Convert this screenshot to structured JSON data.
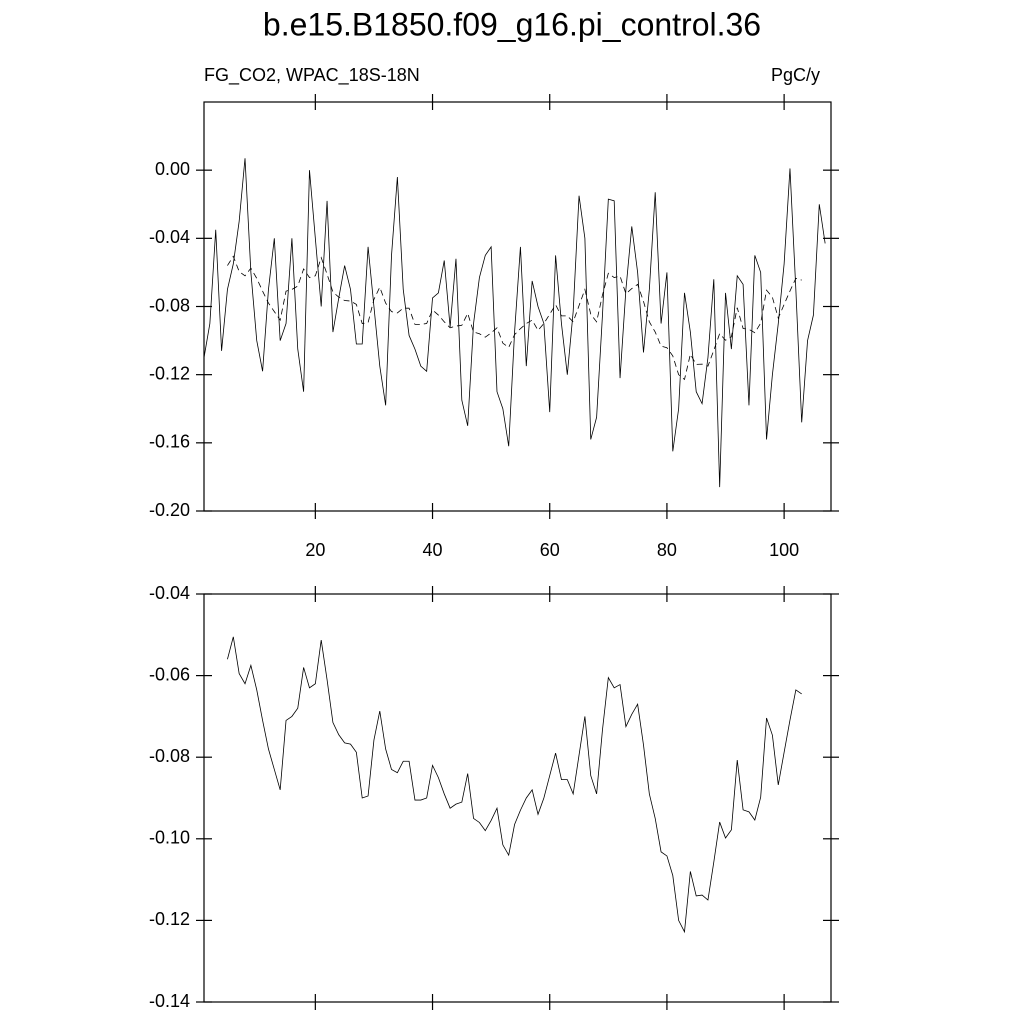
{
  "chart_data": [
    {
      "type": "line",
      "title": "b.e15.B1850.f09_g16.pi_control.36",
      "subtitle_left": "FG_CO2, WPAC_18S-18N",
      "subtitle_right": "PgC/y",
      "xlim": [
        1,
        108
      ],
      "ylim": [
        -0.2,
        0.04
      ],
      "xticks": [
        20,
        40,
        60,
        80,
        100
      ],
      "xtick_labels_shown": true,
      "yticks": [
        {
          "value": 0,
          "label": "0.00"
        },
        {
          "value": -0.04,
          "label": "-0.04"
        },
        {
          "value": -0.08,
          "label": "-0.08"
        },
        {
          "value": -0.12,
          "label": "-0.12"
        },
        {
          "value": -0.16,
          "label": "-0.16"
        },
        {
          "value": -0.2,
          "label": "-0.20"
        }
      ],
      "series": [
        {
          "color": "#000000",
          "dashed": false,
          "x": [
            1,
            2,
            3,
            4,
            5,
            6,
            7,
            8,
            9,
            10,
            11,
            12,
            13,
            14,
            15,
            16,
            17,
            18,
            19,
            20,
            21,
            22,
            23,
            24,
            25,
            26,
            27,
            28,
            29,
            30,
            31,
            32,
            33,
            34,
            35,
            36,
            37,
            38,
            39,
            40,
            41,
            42,
            43,
            44,
            45,
            46,
            47,
            48,
            49,
            50,
            51,
            52,
            53,
            54,
            55,
            56,
            57,
            58,
            59,
            60,
            61,
            62,
            63,
            64,
            65,
            66,
            67,
            68,
            69,
            70,
            71,
            72,
            73,
            74,
            75,
            76,
            77,
            78,
            79,
            80,
            81,
            82,
            83,
            84,
            85,
            86,
            87,
            88,
            89,
            90,
            91,
            92,
            93,
            94,
            95,
            96,
            97,
            98,
            99,
            100,
            101,
            102,
            103,
            104,
            105,
            106,
            107
          ],
          "values": [
            -0.11,
            -0.09,
            -0.035,
            -0.106,
            -0.07,
            -0.055,
            -0.03,
            0.007,
            -0.06,
            -0.1,
            -0.118,
            -0.07,
            -0.04,
            -0.1,
            -0.09,
            -0.04,
            -0.105,
            -0.13,
            0.0,
            -0.04,
            -0.08,
            -0.018,
            -0.095,
            -0.075,
            -0.056,
            -0.07,
            -0.102,
            -0.102,
            -0.045,
            -0.08,
            -0.115,
            -0.138,
            -0.05,
            -0.004,
            -0.07,
            -0.097,
            -0.105,
            -0.115,
            -0.118,
            -0.075,
            -0.072,
            -0.053,
            -0.092,
            -0.052,
            -0.135,
            -0.15,
            -0.09,
            -0.063,
            -0.05,
            -0.045,
            -0.13,
            -0.14,
            -0.162,
            -0.095,
            -0.045,
            -0.115,
            -0.065,
            -0.08,
            -0.09,
            -0.142,
            -0.05,
            -0.09,
            -0.12,
            -0.083,
            -0.015,
            -0.04,
            -0.158,
            -0.145,
            -0.085,
            -0.017,
            -0.018,
            -0.122,
            -0.07,
            -0.033,
            -0.06,
            -0.107,
            -0.07,
            -0.013,
            -0.09,
            -0.06,
            -0.165,
            -0.14,
            -0.072,
            -0.095,
            -0.13,
            -0.137,
            -0.11,
            -0.064,
            -0.186,
            -0.072,
            -0.105,
            -0.062,
            -0.067,
            -0.138,
            -0.05,
            -0.06,
            -0.158,
            -0.12,
            -0.09,
            -0.055,
            0.001,
            -0.07,
            -0.148,
            -0.1,
            -0.085,
            -0.02,
            -0.043
          ]
        },
        {
          "color": "#000000",
          "dashed": true,
          "x": [
            5,
            6,
            7,
            8,
            9,
            10,
            11,
            12,
            13,
            14,
            15,
            16,
            17,
            18,
            19,
            20,
            21,
            22,
            23,
            24,
            25,
            26,
            27,
            28,
            29,
            30,
            31,
            32,
            33,
            34,
            35,
            36,
            37,
            38,
            39,
            40,
            41,
            42,
            43,
            44,
            45,
            46,
            47,
            48,
            49,
            50,
            51,
            52,
            53,
            54,
            55,
            56,
            57,
            58,
            59,
            60,
            61,
            62,
            63,
            64,
            65,
            66,
            67,
            68,
            69,
            70,
            71,
            72,
            73,
            74,
            75,
            76,
            77,
            78,
            79,
            80,
            81,
            82,
            83,
            84,
            85,
            86,
            87,
            88,
            89,
            90,
            91,
            92,
            93,
            94,
            95,
            96,
            97,
            98,
            99,
            100,
            101,
            102,
            103
          ],
          "values": [
            -0.056,
            -0.0505,
            -0.0595,
            -0.062,
            -0.0575,
            -0.0635,
            -0.071,
            -0.078,
            -0.083,
            -0.088,
            -0.071,
            -0.07,
            -0.068,
            -0.058,
            -0.063,
            -0.062,
            -0.0513,
            -0.061,
            -0.0715,
            -0.0745,
            -0.0765,
            -0.0768,
            -0.0788,
            -0.09,
            -0.0895,
            -0.0758,
            -0.0687,
            -0.078,
            -0.083,
            -0.0838,
            -0.081,
            -0.081,
            -0.0905,
            -0.0905,
            -0.09,
            -0.082,
            -0.085,
            -0.089,
            -0.0925,
            -0.0915,
            -0.091,
            -0.084,
            -0.095,
            -0.096,
            -0.098,
            -0.0955,
            -0.0925,
            -0.1015,
            -0.104,
            -0.0965,
            -0.093,
            -0.09,
            -0.088,
            -0.094,
            -0.09,
            -0.0845,
            -0.079,
            -0.0855,
            -0.0855,
            -0.089,
            -0.0795,
            -0.07,
            -0.0845,
            -0.089,
            -0.0733,
            -0.0605,
            -0.063,
            -0.0622,
            -0.0725,
            -0.0695,
            -0.067,
            -0.077,
            -0.089,
            -0.095,
            -0.1032,
            -0.1042,
            -0.109,
            -0.12,
            -0.1228,
            -0.108,
            -0.114,
            -0.1138,
            -0.115,
            -0.1057,
            -0.0959,
            -0.0998,
            -0.0978,
            -0.0807,
            -0.0929,
            -0.0934,
            -0.0954,
            -0.0898,
            -0.0704,
            -0.0746,
            -0.0868,
            -0.0788,
            -0.0709,
            -0.0635,
            -0.0645
          ]
        }
      ]
    },
    {
      "type": "line",
      "xlim": [
        1,
        108
      ],
      "ylim": [
        -0.14,
        -0.04
      ],
      "xticks": [
        20,
        40,
        60,
        80,
        100
      ],
      "xtick_labels_shown": false,
      "yticks": [
        {
          "value": -0.04,
          "label": "-0.04"
        },
        {
          "value": -0.06,
          "label": "-0.06"
        },
        {
          "value": -0.08,
          "label": "-0.08"
        },
        {
          "value": -0.1,
          "label": "-0.10"
        },
        {
          "value": -0.12,
          "label": "-0.12"
        },
        {
          "value": -0.14,
          "label": "-0.14"
        }
      ],
      "series": [
        {
          "color": "#000000",
          "dashed": false,
          "x": [
            5,
            6,
            7,
            8,
            9,
            10,
            11,
            12,
            13,
            14,
            15,
            16,
            17,
            18,
            19,
            20,
            21,
            22,
            23,
            24,
            25,
            26,
            27,
            28,
            29,
            30,
            31,
            32,
            33,
            34,
            35,
            36,
            37,
            38,
            39,
            40,
            41,
            42,
            43,
            44,
            45,
            46,
            47,
            48,
            49,
            50,
            51,
            52,
            53,
            54,
            55,
            56,
            57,
            58,
            59,
            60,
            61,
            62,
            63,
            64,
            65,
            66,
            67,
            68,
            69,
            70,
            71,
            72,
            73,
            74,
            75,
            76,
            77,
            78,
            79,
            80,
            81,
            82,
            83,
            84,
            85,
            86,
            87,
            88,
            89,
            90,
            91,
            92,
            93,
            94,
            95,
            96,
            97,
            98,
            99,
            100,
            101,
            102,
            103
          ],
          "values": [
            -0.056,
            -0.0505,
            -0.0595,
            -0.062,
            -0.0575,
            -0.0635,
            -0.071,
            -0.078,
            -0.083,
            -0.088,
            -0.071,
            -0.07,
            -0.068,
            -0.058,
            -0.063,
            -0.062,
            -0.0513,
            -0.061,
            -0.0715,
            -0.0745,
            -0.0765,
            -0.0768,
            -0.0788,
            -0.09,
            -0.0895,
            -0.0758,
            -0.0687,
            -0.078,
            -0.083,
            -0.0838,
            -0.081,
            -0.081,
            -0.0905,
            -0.0905,
            -0.09,
            -0.082,
            -0.085,
            -0.089,
            -0.0925,
            -0.0915,
            -0.091,
            -0.084,
            -0.095,
            -0.096,
            -0.098,
            -0.0955,
            -0.0925,
            -0.1015,
            -0.104,
            -0.0965,
            -0.093,
            -0.09,
            -0.088,
            -0.094,
            -0.09,
            -0.0845,
            -0.079,
            -0.0855,
            -0.0855,
            -0.089,
            -0.0795,
            -0.07,
            -0.0845,
            -0.089,
            -0.0733,
            -0.0605,
            -0.063,
            -0.0622,
            -0.0725,
            -0.0695,
            -0.067,
            -0.077,
            -0.089,
            -0.095,
            -0.1032,
            -0.1042,
            -0.109,
            -0.12,
            -0.1228,
            -0.108,
            -0.114,
            -0.1138,
            -0.115,
            -0.1057,
            -0.0959,
            -0.0998,
            -0.0978,
            -0.0807,
            -0.0929,
            -0.0934,
            -0.0954,
            -0.0898,
            -0.0704,
            -0.0746,
            -0.0868,
            -0.0788,
            -0.0709,
            -0.0635,
            -0.0645
          ]
        }
      ]
    }
  ]
}
